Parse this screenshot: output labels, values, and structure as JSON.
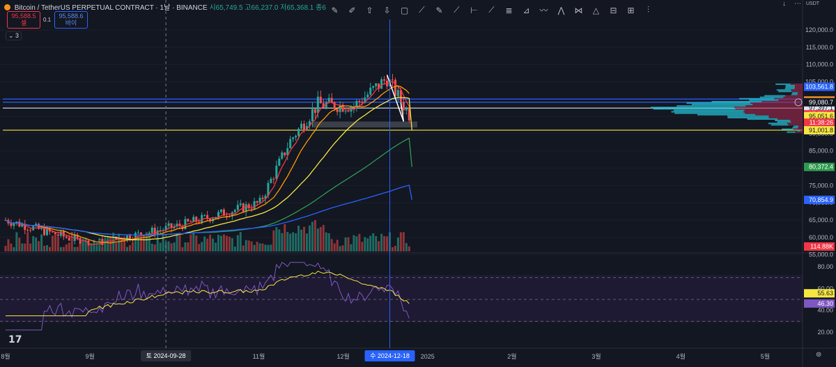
{
  "header": {
    "symbol": "Bitcoin / TetherUS PERPETUAL CONTRACT · 1날 · BINANCE",
    "ohlc": "시65,749.5 고66,237.0 저65,368.1 종6"
  },
  "order_book": {
    "sell_price": "95,588.5",
    "sell_label": "셀",
    "spread": "0.1",
    "buy_price": "95,588.6",
    "buy_label": "바이"
  },
  "collapse_label": "⌄ 3",
  "currency": "USDT",
  "window_controls": {
    "down": "↓",
    "more": "⋯"
  },
  "toolbar": [
    {
      "name": "brush-icon",
      "glyph": "✎"
    },
    {
      "name": "highlighter-icon",
      "glyph": "✐"
    },
    {
      "name": "arrow-up-icon",
      "glyph": "⇧"
    },
    {
      "name": "arrow-down-icon",
      "glyph": "⇩"
    },
    {
      "name": "rectangle-icon",
      "glyph": "▢"
    },
    {
      "name": "path-icon",
      "glyph": "⟋"
    },
    {
      "name": "pen-icon",
      "glyph": "✎"
    },
    {
      "name": "trend-line-icon",
      "glyph": "⟋"
    },
    {
      "name": "horizontal-ray-icon",
      "glyph": "⊢"
    },
    {
      "name": "ray-icon",
      "glyph": "⟋"
    },
    {
      "name": "fib-retracement-icon",
      "glyph": "≣"
    },
    {
      "name": "gann-fan-icon",
      "glyph": "⊿"
    },
    {
      "name": "elliott-wave-icon",
      "glyph": "〰"
    },
    {
      "name": "abcd-pattern-icon",
      "glyph": "⋀"
    },
    {
      "name": "xabcd-pattern-icon",
      "glyph": "⋈"
    },
    {
      "name": "triangle-pattern-icon",
      "glyph": "△"
    },
    {
      "name": "date-range-icon",
      "glyph": "⊟"
    },
    {
      "name": "price-range-icon",
      "glyph": "⊞"
    },
    {
      "name": "forecast-icon",
      "glyph": "⫶"
    }
  ],
  "tv_logo": "17",
  "settings_glyph": "⊚",
  "chart_data": {
    "type": "candlestick",
    "price_axis": {
      "range": [
        45000,
        120000
      ],
      "ticks": [
        120000,
        115000,
        110000,
        105000,
        100000,
        95000,
        90000,
        85000,
        80000,
        75000,
        70000,
        65000,
        60000,
        55000
      ],
      "tick_labels": [
        "120,000.0",
        "115,000.0",
        "110,000.0",
        "105,000.0",
        "100,000.0",
        "95,000.0",
        "90,000.0",
        "85,000.0",
        "80,000.0",
        "75,000.0",
        "70,000.0",
        "65,000.0",
        "60,000.0",
        "55,000.0"
      ]
    },
    "rsi_axis": {
      "range": [
        15,
        100
      ],
      "ticks": [
        80,
        60,
        40,
        20
      ],
      "tick_labels": [
        "80.00",
        "60.00",
        "40.00",
        "20.00"
      ]
    },
    "time_axis": {
      "labels": [
        "8월",
        "9월",
        "10월",
        "11월",
        "12월",
        "2025",
        "2월",
        "3월",
        "4월",
        "5월"
      ],
      "months_from_aug1": [
        0,
        1,
        2,
        3,
        4,
        5,
        6,
        7,
        8,
        9
      ]
    },
    "hover_dates": [
      {
        "label": "토 2024-09-28",
        "date": "2024-09-28"
      },
      {
        "label": "수 2024-12-18",
        "date": "2024-12-18"
      }
    ],
    "price_labels": [
      {
        "value": 103561.8,
        "label": "103,561.8",
        "color": "#2962ff"
      },
      {
        "value": 99585.6,
        "label": "99,585.6",
        "color": "#f7931a"
      },
      {
        "value": 99092.9,
        "label": "99,092.9",
        "color": "#2962ff"
      },
      {
        "value": 97397.1,
        "label": "97,397.1",
        "color": "#e0e3eb"
      },
      {
        "value": 99080.7,
        "label": "99,080.7",
        "color": "#131722"
      },
      {
        "value": 95589.6,
        "label": "95,589.6",
        "color": "#f23645"
      },
      {
        "value": 95051.6,
        "label": "95,051.6",
        "color": "#f5e642"
      },
      {
        "value": 91001.8,
        "label": "91,001.8",
        "color": "#f5e642"
      },
      {
        "value": 80372.4,
        "label": "80,372.4",
        "color": "#2e9a4f"
      },
      {
        "value": 70854.9,
        "label": "70,854.9",
        "color": "#2962ff"
      }
    ],
    "countdown": "11:38:26",
    "volume_label": "114.88K",
    "rsi_labels": [
      {
        "value": 55.63,
        "label": "55.63",
        "color": "#f5e642"
      },
      {
        "value": 46.3,
        "label": "46.30",
        "color": "#7e57c2"
      }
    ],
    "horizontal_levels": [
      {
        "value": 100000,
        "color": "#2962ff"
      },
      {
        "value": 99092.9,
        "color": "#2962ff"
      },
      {
        "value": 97397.1,
        "color": "#e0e3eb"
      },
      {
        "value": 91001.8,
        "color": "#f5e642"
      }
    ],
    "candles_monthly_closes": [
      {
        "date": "2024-08-01",
        "close": 65000
      },
      {
        "date": "2024-09-01",
        "close": 58000
      },
      {
        "date": "2024-10-01",
        "close": 63000
      },
      {
        "date": "2024-11-01",
        "close": 70000
      },
      {
        "date": "2024-11-12",
        "close": 88000
      },
      {
        "date": "2024-11-22",
        "close": 98500
      },
      {
        "date": "2024-12-05",
        "close": 98000
      },
      {
        "date": "2024-12-17",
        "close": 106000
      },
      {
        "date": "2024-12-25",
        "close": 95589.6
      }
    ],
    "moving_averages": [
      {
        "color": "#f5e642",
        "last": 91001.8
      },
      {
        "color": "#2e9a4f",
        "last": 80372.4
      },
      {
        "color": "#2962ff",
        "last": 70854.9
      }
    ]
  }
}
